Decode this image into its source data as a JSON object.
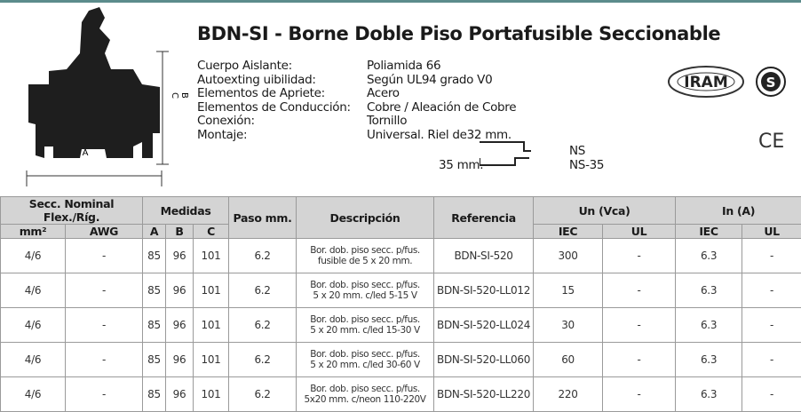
{
  "header": {
    "title": "BDN-SI - Borne Doble Piso Portafusible Seccionable",
    "specs": [
      {
        "label": "Cuerpo Aislante:",
        "value": "Poliamida 66"
      },
      {
        "label": "Autoexting uibilidad:",
        "value": "Según UL94 grado V0"
      },
      {
        "label": "Elementos de Apriete:",
        "value": "Acero"
      },
      {
        "label": "Elementos de Conducción:",
        "value": "Cobre / Aleación de Cobre"
      },
      {
        "label": "Conexión:",
        "value": "Tornillo"
      },
      {
        "label": "Montaje:",
        "value": "Universal. Riel de32 mm."
      }
    ],
    "rail_35": "35 mm.",
    "rail_ns": "NS",
    "rail_ns35": "NS-35",
    "dimension_labels": [
      "A",
      "B",
      "C"
    ],
    "logos": {
      "iram": "IRAM",
      "s": "S",
      "ce": "CE"
    }
  },
  "table": {
    "header_top": [
      "Secc. Nominal Flex./Ríg.",
      "Medidas",
      "Paso mm.",
      "Descripción",
      "Referencia",
      "Un (Vca)",
      "In (A)"
    ],
    "header_sub": [
      "mm²",
      "AWG",
      "A",
      "B",
      "C",
      "IEC",
      "UL",
      "IEC",
      "UL"
    ],
    "rows": [
      [
        "4/6",
        "-",
        "85",
        "96",
        "101",
        "6.2",
        [
          "Bor. dob. piso secc. p/fus.",
          "fusible de 5 x 20 mm."
        ],
        "BDN-SI-520",
        "300",
        "-",
        "6.3",
        "-"
      ],
      [
        "4/6",
        "-",
        "85",
        "96",
        "101",
        "6.2",
        [
          "Bor. dob. piso secc. p/fus.",
          "5 x 20 mm. c/led 5-15 V"
        ],
        "BDN-SI-520-LL012",
        "15",
        "-",
        "6.3",
        "-"
      ],
      [
        "4/6",
        "-",
        "85",
        "96",
        "101",
        "6.2",
        [
          "Bor. dob. piso secc. p/fus.",
          "5 x 20 mm. c/led 15-30 V"
        ],
        "BDN-SI-520-LL024",
        "30",
        "-",
        "6.3",
        "-"
      ],
      [
        "4/6",
        "-",
        "85",
        "96",
        "101",
        "6.2",
        [
          "Bor. dob. piso secc. p/fus.",
          "5 x 20 mm. c/led 30-60 V"
        ],
        "BDN-SI-520-LL060",
        "60",
        "-",
        "6.3",
        "-"
      ],
      [
        "4/6",
        "-",
        "85",
        "96",
        "101",
        "6.2",
        [
          "Bor. dob. piso secc. p/fus.",
          "5x20 mm. c/neon 110-220V"
        ],
        "BDN-SI-520-LL220",
        "220",
        "-",
        "6.3",
        "-"
      ]
    ]
  }
}
